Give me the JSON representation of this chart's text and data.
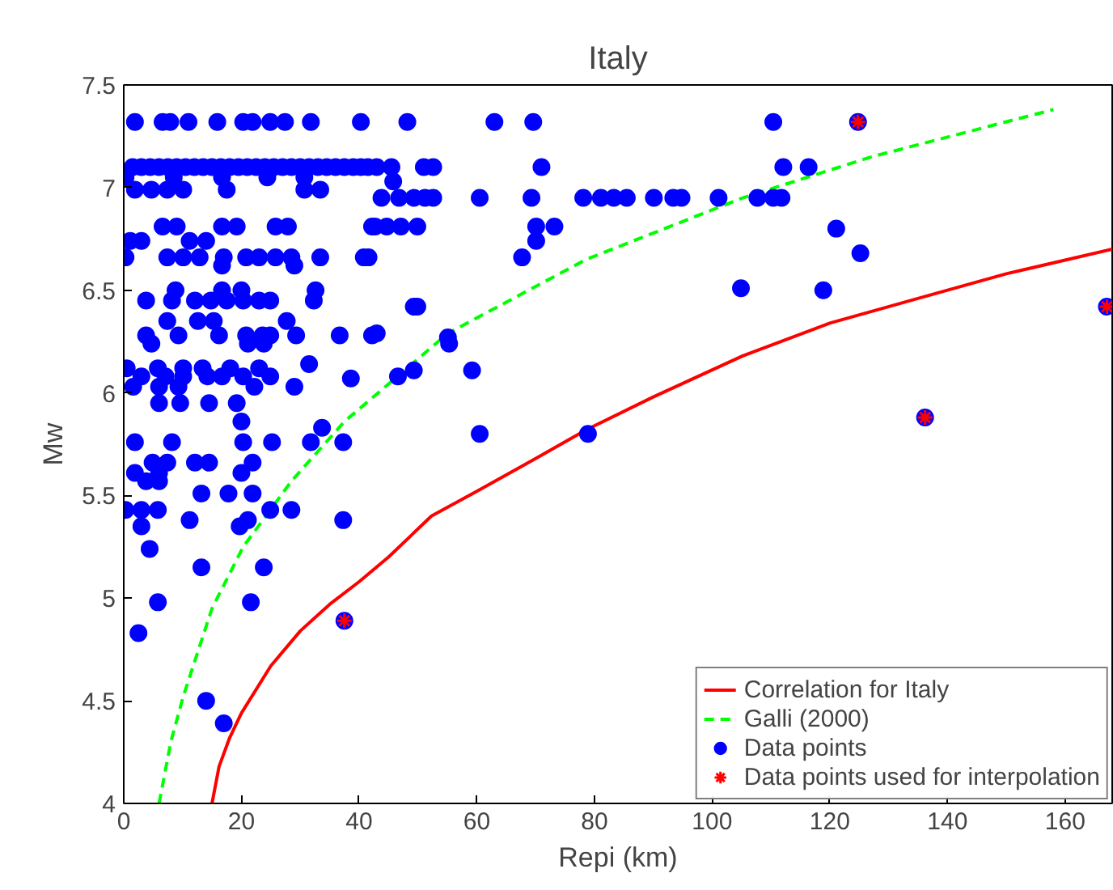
{
  "chart_data": {
    "type": "scatter",
    "title": "Italy",
    "xlabel": "Repi (km)",
    "ylabel": "Mw",
    "xlim": [
      0,
      168
    ],
    "ylim": [
      4,
      7.5
    ],
    "xticks": [
      0,
      20,
      40,
      60,
      80,
      100,
      120,
      140,
      160
    ],
    "yticks": [
      4,
      4.5,
      5,
      5.5,
      6,
      6.5,
      7,
      7.5
    ],
    "grid": false,
    "legend": "bottom right",
    "series": [
      {
        "name": "Correlation for Italy",
        "type": "line",
        "line_style": "solid",
        "color": "#ff0000",
        "x": [
          15,
          16.2,
          18,
          20,
          25,
          30,
          35,
          40,
          45,
          52.3,
          60,
          70,
          78.6,
          90,
          105.2,
          120,
          136.2,
          150,
          168
        ],
        "values": [
          4,
          4.18,
          4.32,
          4.44,
          4.67,
          4.84,
          4.97,
          5.08,
          5.2,
          5.4,
          5.52,
          5.68,
          5.82,
          5.98,
          6.18,
          6.34,
          6.47,
          6.58,
          6.7
        ]
      },
      {
        "name": "Galli (2000)",
        "type": "line",
        "line_style": "dashed",
        "color": "#00ff00",
        "x": [
          6,
          8,
          10.1,
          15,
          20.3,
          28.5,
          37.5,
          55.1,
          78.6,
          105.2,
          127.1,
          158
        ],
        "values": [
          4,
          4.3,
          4.52,
          4.95,
          5.25,
          5.57,
          5.86,
          6.29,
          6.65,
          6.95,
          7.15,
          7.38
        ]
      },
      {
        "name": "Data points",
        "marker": "circle",
        "color": "#0000ff",
        "x": [
          1.9,
          6.6,
          7.9,
          11,
          15.9,
          20.3,
          21.9,
          24.9,
          27.4,
          31.8,
          40.3,
          48.2,
          63,
          69.6,
          110.4,
          124.8,
          1.5,
          3,
          4.5,
          6,
          7.5,
          9,
          10.5,
          12,
          13.5,
          15,
          16.5,
          18,
          19.5,
          21,
          22.5,
          24,
          25.5,
          27,
          28.5,
          30,
          31.5,
          33,
          34.5,
          36,
          37.5,
          39,
          40.3,
          41.5,
          43,
          45.5,
          51,
          52.6,
          71,
          0.3,
          8.5,
          16.7,
          24.4,
          30.7,
          45.8,
          1.9,
          4.7,
          7.4,
          10.1,
          17.5,
          30.7,
          33.4,
          43.8,
          46.8,
          49.3,
          51.2,
          52.6,
          60.5,
          69.3,
          78.1,
          81.1,
          83.3,
          85.5,
          90.1,
          93.4,
          94.8,
          101.1,
          107.7,
          110.4,
          111.8,
          112.1,
          116.4,
          6.6,
          9,
          16.7,
          19.2,
          25.8,
          27.9,
          42.2,
          42.7,
          44.7,
          47.1,
          49.9,
          70.1,
          73.2,
          121.1,
          1.1,
          3,
          11.2,
          14,
          70.1,
          0.3,
          7.4,
          10.1,
          12.9,
          17,
          20.8,
          23,
          25.8,
          28.5,
          33.4,
          40.8,
          41.6,
          67.7,
          125.2,
          16.7,
          29,
          8.8,
          16.7,
          20,
          32.6,
          104.9,
          118.9,
          3.8,
          8.2,
          12.1,
          14.8,
          17.5,
          20.3,
          23,
          24.9,
          32.3,
          49.3,
          49.9,
          7.4,
          12.6,
          15.3,
          27.7,
          3.8,
          9.3,
          16.2,
          20.8,
          23.6,
          24.9,
          29.3,
          36.7,
          42.2,
          43,
          55.1,
          55.3,
          4.7,
          21.1,
          23.8,
          0.5,
          5.8,
          10.1,
          13.4,
          18.1,
          23,
          31.5,
          38.6,
          49.3,
          59.2,
          3,
          7.1,
          10.1,
          14.2,
          16.7,
          20.3,
          24.9,
          46.6,
          1.6,
          6,
          9.3,
          22.2,
          29,
          6,
          9.6,
          14.5,
          19.2,
          20,
          33.7,
          1.9,
          8.2,
          20.3,
          25.2,
          31.8,
          37.3,
          60.5,
          78.9,
          4.9,
          7.4,
          12.1,
          14.5,
          21.9,
          1.9,
          6,
          20,
          3.8,
          6,
          13.2,
          17.8,
          21.9,
          0.3,
          3,
          5.8,
          24.9,
          28.5,
          11.2,
          21.1,
          37.3,
          3,
          19.7,
          4.4,
          13.2,
          23.8,
          5.8,
          21.6,
          2.5,
          37.5,
          14,
          17,
          136.2,
          167.1
        ],
        "values": [
          7.32,
          7.32,
          7.32,
          7.32,
          7.32,
          7.32,
          7.32,
          7.32,
          7.32,
          7.32,
          7.32,
          7.32,
          7.32,
          7.32,
          7.32,
          7.32,
          7.1,
          7.1,
          7.1,
          7.1,
          7.1,
          7.1,
          7.1,
          7.1,
          7.1,
          7.1,
          7.1,
          7.1,
          7.1,
          7.1,
          7.1,
          7.1,
          7.1,
          7.1,
          7.1,
          7.1,
          7.1,
          7.1,
          7.1,
          7.1,
          7.1,
          7.1,
          7.1,
          7.1,
          7.1,
          7.1,
          7.1,
          7.1,
          7.1,
          7.05,
          7.05,
          7.05,
          7.05,
          7.05,
          7.03,
          6.99,
          6.99,
          6.99,
          6.99,
          6.99,
          6.99,
          6.99,
          6.95,
          6.95,
          6.95,
          6.95,
          6.95,
          6.95,
          6.95,
          6.95,
          6.95,
          6.95,
          6.95,
          6.95,
          6.95,
          6.95,
          6.95,
          6.95,
          6.95,
          6.95,
          7.1,
          7.1,
          6.81,
          6.81,
          6.81,
          6.81,
          6.81,
          6.81,
          6.81,
          6.81,
          6.81,
          6.81,
          6.81,
          6.81,
          6.81,
          6.8,
          6.74,
          6.74,
          6.74,
          6.74,
          6.74,
          6.66,
          6.66,
          6.66,
          6.66,
          6.66,
          6.66,
          6.66,
          6.66,
          6.66,
          6.66,
          6.66,
          6.66,
          6.66,
          6.68,
          6.62,
          6.62,
          6.5,
          6.5,
          6.5,
          6.5,
          6.51,
          6.5,
          6.45,
          6.45,
          6.45,
          6.45,
          6.45,
          6.45,
          6.45,
          6.45,
          6.45,
          6.42,
          6.42,
          6.35,
          6.35,
          6.35,
          6.35,
          6.28,
          6.28,
          6.28,
          6.28,
          6.28,
          6.28,
          6.28,
          6.28,
          6.28,
          6.29,
          6.27,
          6.24,
          6.24,
          6.24,
          6.24,
          6.12,
          6.12,
          6.12,
          6.12,
          6.12,
          6.12,
          6.14,
          6.07,
          6.11,
          6.11,
          6.08,
          6.08,
          6.08,
          6.08,
          6.08,
          6.08,
          6.08,
          6.08,
          6.03,
          6.03,
          6.03,
          6.03,
          6.03,
          5.95,
          5.95,
          5.95,
          5.95,
          5.86,
          5.83,
          5.76,
          5.76,
          5.76,
          5.76,
          5.76,
          5.76,
          5.8,
          5.8,
          5.66,
          5.66,
          5.66,
          5.66,
          5.66,
          5.61,
          5.61,
          5.61,
          5.57,
          5.57,
          5.51,
          5.51,
          5.51,
          5.43,
          5.43,
          5.43,
          5.43,
          5.43,
          5.38,
          5.38,
          5.38,
          5.35,
          5.35,
          5.24,
          5.15,
          5.15,
          4.98,
          4.98,
          4.83,
          4.89,
          4.5,
          4.39,
          5.88,
          6.42
        ]
      },
      {
        "name": "Data points used for interpolation",
        "marker": "cross",
        "color": "#ff0000",
        "x": [
          37.5,
          124.8,
          136.2,
          167.1
        ],
        "values": [
          4.89,
          7.32,
          5.88,
          6.42
        ]
      }
    ]
  }
}
